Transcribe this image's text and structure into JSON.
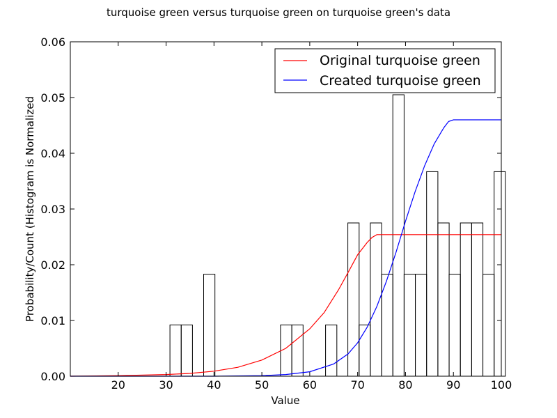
{
  "chart_data": {
    "type": "bar",
    "title": "turquoise green versus turquoise green on turquoise green's data",
    "xlabel": "Value",
    "ylabel": "Probability/Count (Histogram is Normalized",
    "xlim": [
      10,
      100
    ],
    "ylim": [
      0,
      0.06
    ],
    "xticks": [
      20,
      30,
      40,
      50,
      60,
      70,
      80,
      90,
      100
    ],
    "yticks": [
      0.0,
      0.01,
      0.02,
      0.03,
      0.04,
      0.05,
      0.06
    ],
    "ytick_labels": [
      "0.00",
      "0.01",
      "0.02",
      "0.03",
      "0.04",
      "0.05",
      "0.06"
    ],
    "grid": false,
    "legend_position": "top-right",
    "histogram": {
      "bin_width": 2.35,
      "bins": [
        {
          "x": 30.8,
          "value": 0.0092
        },
        {
          "x": 33.15,
          "value": 0.0092
        },
        {
          "x": 37.85,
          "value": 0.0183
        },
        {
          "x": 53.9,
          "value": 0.0092
        },
        {
          "x": 56.25,
          "value": 0.0092
        },
        {
          "x": 63.3,
          "value": 0.0092
        },
        {
          "x": 67.95,
          "value": 0.0275
        },
        {
          "x": 70.3,
          "value": 0.0092
        },
        {
          "x": 72.65,
          "value": 0.0275
        },
        {
          "x": 75.0,
          "value": 0.0183
        },
        {
          "x": 77.35,
          "value": 0.0505
        },
        {
          "x": 79.7,
          "value": 0.0183
        },
        {
          "x": 82.05,
          "value": 0.0183
        },
        {
          "x": 84.4,
          "value": 0.0367
        },
        {
          "x": 86.75,
          "value": 0.0275
        },
        {
          "x": 89.1,
          "value": 0.0183
        },
        {
          "x": 91.45,
          "value": 0.0275
        },
        {
          "x": 93.8,
          "value": 0.0275
        },
        {
          "x": 96.15,
          "value": 0.0183
        },
        {
          "x": 98.5,
          "value": 0.0367
        }
      ]
    },
    "series": [
      {
        "name": "Original turquoise green",
        "color": "#ff0000",
        "x": [
          10,
          20,
          30,
          35,
          40,
          45,
          50,
          55,
          60,
          63,
          66,
          68,
          70,
          72,
          73,
          74,
          75,
          80,
          85,
          90,
          95,
          100
        ],
        "y": [
          0.0,
          0.0001,
          0.0003,
          0.0005,
          0.0009,
          0.0016,
          0.0029,
          0.005,
          0.0085,
          0.0114,
          0.0155,
          0.0186,
          0.0218,
          0.024,
          0.0249,
          0.0254,
          0.0254,
          0.0254,
          0.0254,
          0.0254,
          0.0254,
          0.0254
        ]
      },
      {
        "name": "Created turquoise green",
        "color": "#0000ff",
        "x": [
          10,
          20,
          30,
          40,
          50,
          55,
          60,
          65,
          68,
          70,
          72,
          74,
          76,
          78,
          80,
          82,
          84,
          86,
          88,
          89,
          90,
          92,
          95,
          100
        ],
        "y": [
          0.0,
          0.0,
          0.0,
          0.0,
          0.0001,
          0.0003,
          0.0008,
          0.0022,
          0.004,
          0.006,
          0.0088,
          0.0125,
          0.017,
          0.0222,
          0.0278,
          0.0331,
          0.0378,
          0.0417,
          0.0446,
          0.0457,
          0.046,
          0.046,
          0.046,
          0.046
        ]
      }
    ]
  }
}
